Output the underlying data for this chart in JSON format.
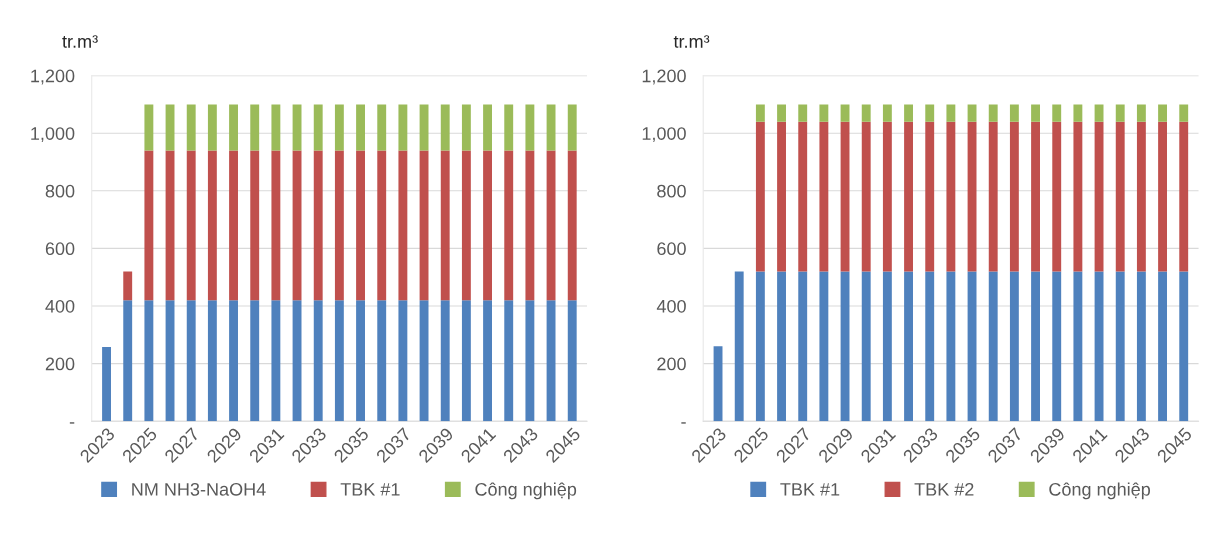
{
  "chart_data": [
    {
      "type": "bar",
      "stacked": true,
      "ylabel": "tr.m³",
      "categories": [
        "2023",
        null,
        "2025",
        null,
        "2027",
        null,
        "2029",
        null,
        "2031",
        null,
        "2033",
        null,
        "2035",
        null,
        "2037",
        null,
        "2039",
        null,
        "2041",
        null,
        "2043",
        null,
        "2045"
      ],
      "ylim": [
        0,
        1200
      ],
      "yticks": [
        {
          "value": 0,
          "label": "-"
        },
        {
          "value": 200,
          "label": "200"
        },
        {
          "value": 400,
          "label": "400"
        },
        {
          "value": 600,
          "label": "600"
        },
        {
          "value": 800,
          "label": "800"
        },
        {
          "value": 1000,
          "label": "1,000"
        },
        {
          "value": 1200,
          "label": "1,200"
        }
      ],
      "grid": "y",
      "legend": "bottom",
      "series": [
        {
          "name": "NM NH3-NaOH4",
          "color": "#4f81bd",
          "values": [
            258,
            420,
            420,
            420,
            420,
            420,
            420,
            420,
            420,
            420,
            420,
            420,
            420,
            420,
            420,
            420,
            420,
            420,
            420,
            420,
            420,
            420,
            420
          ]
        },
        {
          "name": "TBK #1",
          "color": "#c0504d",
          "values": [
            null,
            100,
            520,
            520,
            520,
            520,
            520,
            520,
            520,
            520,
            520,
            520,
            520,
            520,
            520,
            520,
            520,
            520,
            520,
            520,
            520,
            520,
            520
          ]
        },
        {
          "name": "Công nghiệp",
          "color": "#9bbb59",
          "values": [
            null,
            null,
            160,
            160,
            160,
            160,
            160,
            160,
            160,
            160,
            160,
            160,
            160,
            160,
            160,
            160,
            160,
            160,
            160,
            160,
            160,
            160,
            160
          ]
        }
      ]
    },
    {
      "type": "bar",
      "stacked": true,
      "ylabel": "tr.m³",
      "categories": [
        "2023",
        null,
        "2025",
        null,
        "2027",
        null,
        "2029",
        null,
        "2031",
        null,
        "2033",
        null,
        "2035",
        null,
        "2037",
        null,
        "2039",
        null,
        "2041",
        null,
        "2043",
        null,
        "2045"
      ],
      "ylim": [
        0,
        1200
      ],
      "yticks": [
        {
          "value": 0,
          "label": "-"
        },
        {
          "value": 200,
          "label": "200"
        },
        {
          "value": 400,
          "label": "400"
        },
        {
          "value": 600,
          "label": "600"
        },
        {
          "value": 800,
          "label": "800"
        },
        {
          "value": 1000,
          "label": "1,000"
        },
        {
          "value": 1200,
          "label": "1,200"
        }
      ],
      "grid": "y",
      "legend": "bottom",
      "series": [
        {
          "name": "TBK #1",
          "color": "#4f81bd",
          "values": [
            260,
            520,
            520,
            520,
            520,
            520,
            520,
            520,
            520,
            520,
            520,
            520,
            520,
            520,
            520,
            520,
            520,
            520,
            520,
            520,
            520,
            520,
            520
          ]
        },
        {
          "name": "TBK #2",
          "color": "#c0504d",
          "values": [
            null,
            null,
            520,
            520,
            520,
            520,
            520,
            520,
            520,
            520,
            520,
            520,
            520,
            520,
            520,
            520,
            520,
            520,
            520,
            520,
            520,
            520,
            520
          ]
        },
        {
          "name": "Công nghiệp",
          "color": "#9bbb59",
          "values": [
            null,
            null,
            60,
            60,
            60,
            60,
            60,
            60,
            60,
            60,
            60,
            60,
            60,
            60,
            60,
            60,
            60,
            60,
            60,
            60,
            60,
            60,
            60
          ]
        }
      ]
    }
  ]
}
